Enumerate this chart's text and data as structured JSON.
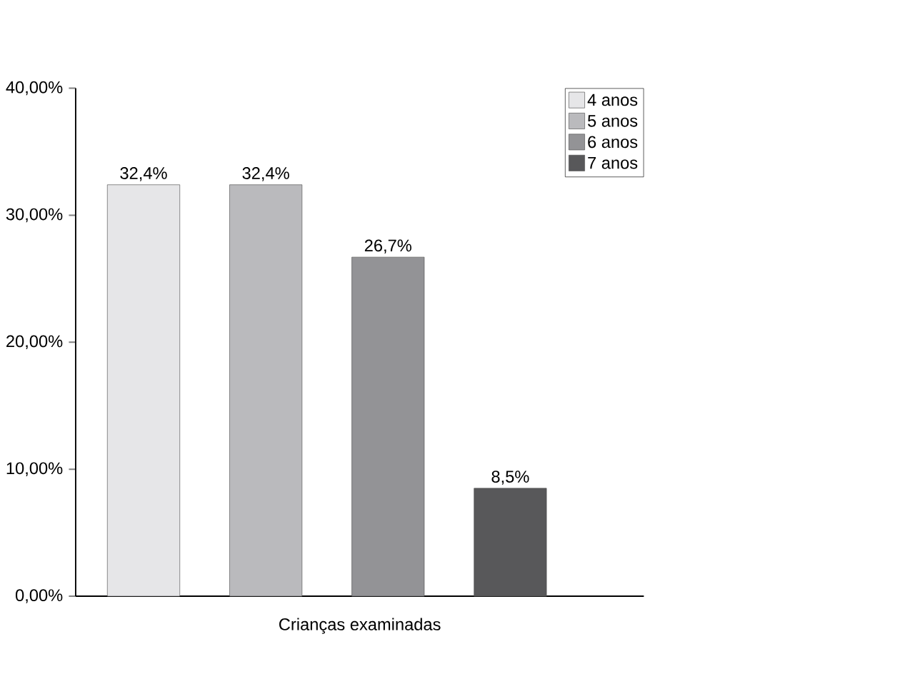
{
  "chart_data": {
    "type": "bar",
    "xlabel": "Crianças examinadas",
    "categories": [
      null
    ],
    "series": [
      {
        "name": "4 anos",
        "color": "#e6e6e8",
        "values": [
          32.4
        ],
        "value_labels": [
          "32,4%"
        ]
      },
      {
        "name": "5 anos",
        "color": "#bababd",
        "values": [
          32.4
        ],
        "value_labels": [
          "32,4%"
        ]
      },
      {
        "name": "6 anos",
        "color": "#939396",
        "values": [
          26.7
        ],
        "value_labels": [
          "26,7%"
        ]
      },
      {
        "name": "7 anos",
        "color": "#58585a",
        "values": [
          8.5
        ],
        "value_labels": [
          "8,5%"
        ]
      }
    ],
    "ylim": [
      0,
      40
    ],
    "yticks": [
      {
        "value": 0,
        "label": "0,00%"
      },
      {
        "value": 10,
        "label": "10,00%"
      },
      {
        "value": 20,
        "label": "20,00%"
      },
      {
        "value": 30,
        "label": "30,00%"
      },
      {
        "value": 40,
        "label": "40,00%"
      }
    ],
    "grid": false,
    "legend": "top right"
  }
}
